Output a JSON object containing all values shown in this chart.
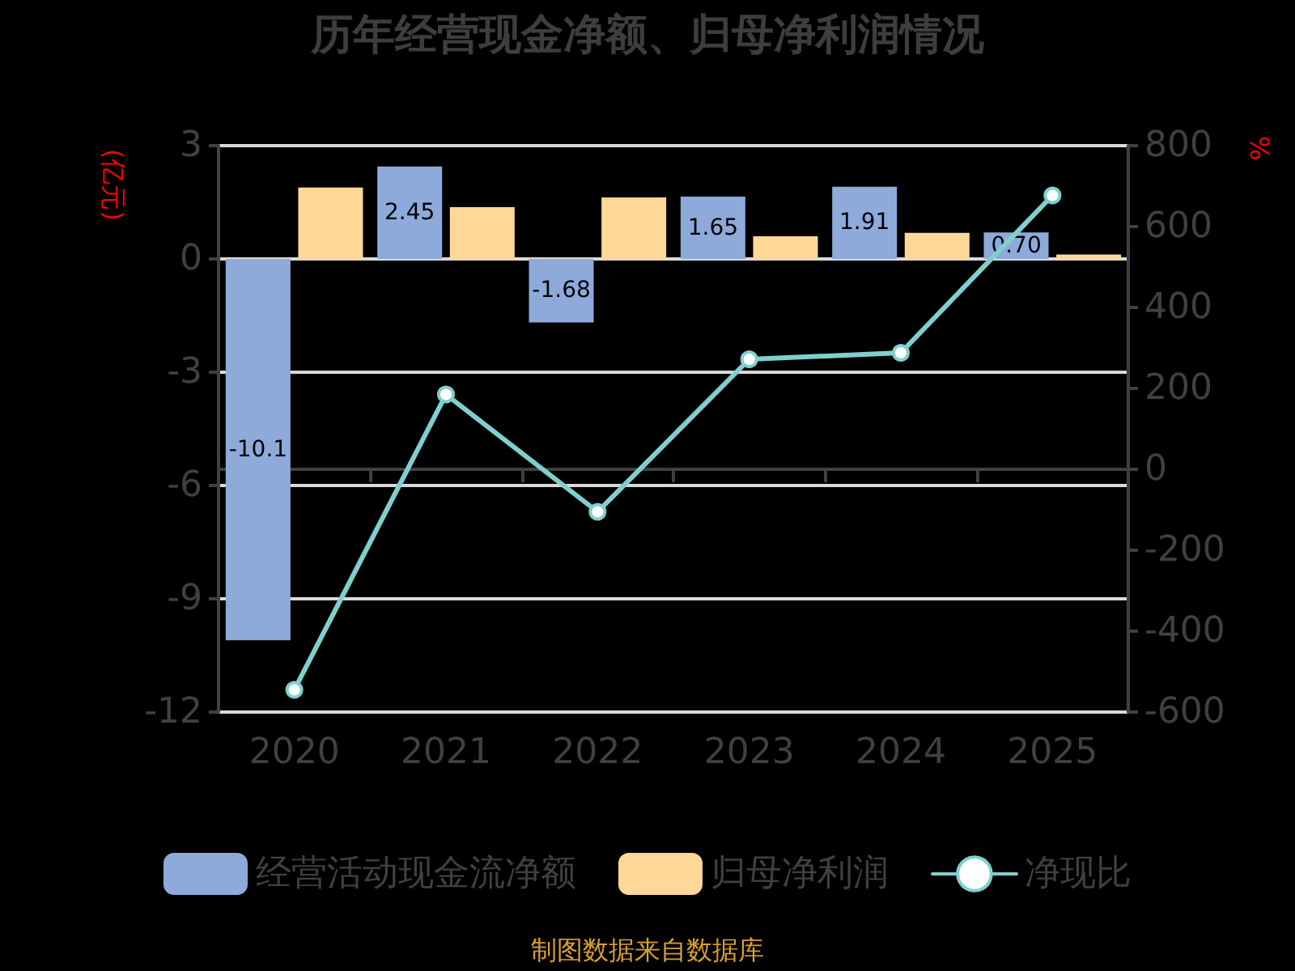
{
  "chart_data": {
    "type": "bar",
    "title": "历年经营现金净额、归母净利润情况",
    "ylabel": "(亿元)",
    "y2label": "%",
    "categories": [
      "2020",
      "2021",
      "2022",
      "2023",
      "2024",
      "2025"
    ],
    "series": [
      {
        "name": "经营活动现金流净额",
        "color": "#8eaadb",
        "values": [
          -10.1,
          2.45,
          -1.68,
          1.65,
          1.91,
          0.7
        ],
        "value_labels": [
          "-10.1",
          "2.45",
          "-1.68",
          "1.65",
          "1.91",
          "0.70"
        ]
      },
      {
        "name": "归母净利润",
        "color": "#ffd797",
        "values": [
          1.89,
          1.37,
          1.63,
          0.6,
          0.69,
          0.12
        ]
      },
      {
        "name": "净现比",
        "type": "line",
        "axis": "y2",
        "color": "#7fd0cd",
        "values": [
          -545,
          185,
          -105,
          272,
          288,
          677
        ]
      }
    ],
    "ylim": [
      -12,
      3
    ],
    "yticks": [
      -12,
      -9,
      -6,
      -3,
      0,
      3
    ],
    "y2lim": [
      -600,
      800
    ],
    "y2ticks": [
      -600,
      -400,
      -200,
      0,
      200,
      400,
      600,
      800
    ],
    "grid": "y",
    "legend": "bottom",
    "marker": "circle",
    "annotations": [
      "制图数据来自数据库"
    ]
  }
}
